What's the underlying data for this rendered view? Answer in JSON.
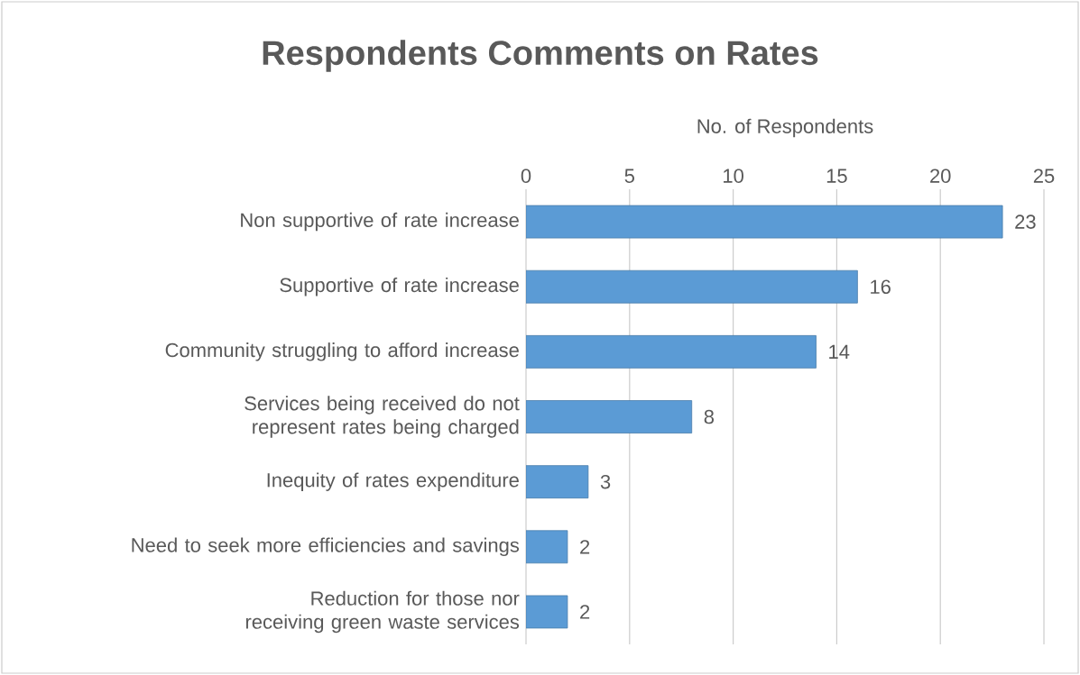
{
  "chart_data": {
    "type": "bar",
    "orientation": "horizontal",
    "title": "Respondents Comments on Rates",
    "xlabel": "No. of Respondents",
    "categories": [
      "Non supportive of rate increase",
      "Supportive of rate increase",
      "Community struggling to afford increase",
      "Services being received do not represent rates being charged",
      "Inequity of rates expenditure",
      "Need to seek more efficiencies and savings",
      "Reduction for those nor receiving green waste services"
    ],
    "values": [
      23,
      16,
      14,
      8,
      3,
      2,
      2
    ],
    "color": "#5b9bd5",
    "xlim": [
      0,
      25
    ],
    "xticks": [
      0,
      5,
      10,
      15,
      20,
      25
    ],
    "grid": "x",
    "data_labels": true
  }
}
